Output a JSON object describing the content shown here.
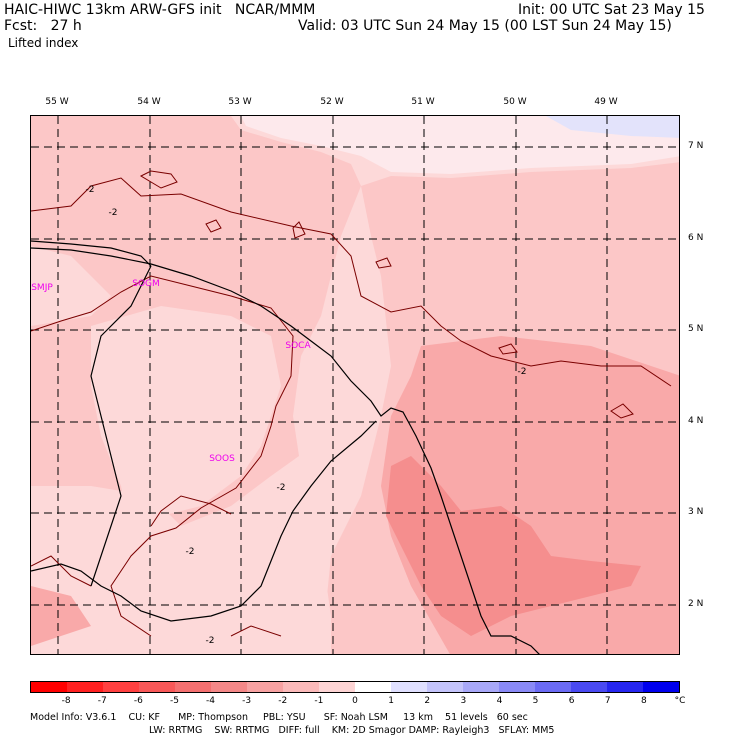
{
  "header": {
    "line1_left": "HAIC-HIWC 13km ARW-GFS init   NCAR/MMM",
    "line1_right": "Init: 00 UTC Sat 23 May 15",
    "line2_left": "Fcst:   27 h",
    "line2_right": "Valid: 03 UTC Sun 24 May 15 (00 LST Sun 24 May 15)",
    "field": "Lifted index"
  },
  "map": {
    "lon_labels": [
      "55 W",
      "54 W",
      "53 W",
      "52 W",
      "51 W",
      "50 W",
      "49 W"
    ],
    "lat_labels": [
      "7 N",
      "6 N",
      "5 N",
      "4 N",
      "3 N",
      "2 N"
    ],
    "stations": [
      "SMJP",
      "SOGM",
      "SOCA",
      "SOOS"
    ],
    "contour_label": "-2",
    "colors": {
      "fill_minus1": "#fdd9d9",
      "fill_minus2": "#fcc7c7",
      "fill_minus3": "#f9a9a9",
      "fill_minus4": "#f58e8e",
      "fill_0": "#fde9ec",
      "fill_pos": "#e3e3fb"
    }
  },
  "colorbar": {
    "ticks": [
      "-8",
      "-7",
      "-6",
      "-5",
      "-4",
      "-3",
      "-2",
      "-1",
      "0",
      "1",
      "2",
      "3",
      "4",
      "5",
      "6",
      "7",
      "8"
    ],
    "unit": "°C",
    "colors": [
      "#ff0000",
      "#ff2020",
      "#ff4040",
      "#f85858",
      "#f47070",
      "#f48888",
      "#f7a2a2",
      "#fbbaba",
      "#fdd4d4",
      "#ffffff",
      "#e0e0ff",
      "#c4c4fb",
      "#a8a8f8",
      "#8a8af6",
      "#6b6bf4",
      "#4a4af2",
      "#2626f0",
      "#0000ee"
    ]
  },
  "model_info": {
    "line1": "Model Info: V3.6.1    CU: KF      MP: Thompson     PBL: YSU      SF: Noah LSM     13 km    51 levels   60 sec",
    "line2": "LW: RRTMG    SW: RRTMG   DIFF: full    KM: 2D Smagor DAMP: Rayleigh3   SFLAY: MM5"
  }
}
